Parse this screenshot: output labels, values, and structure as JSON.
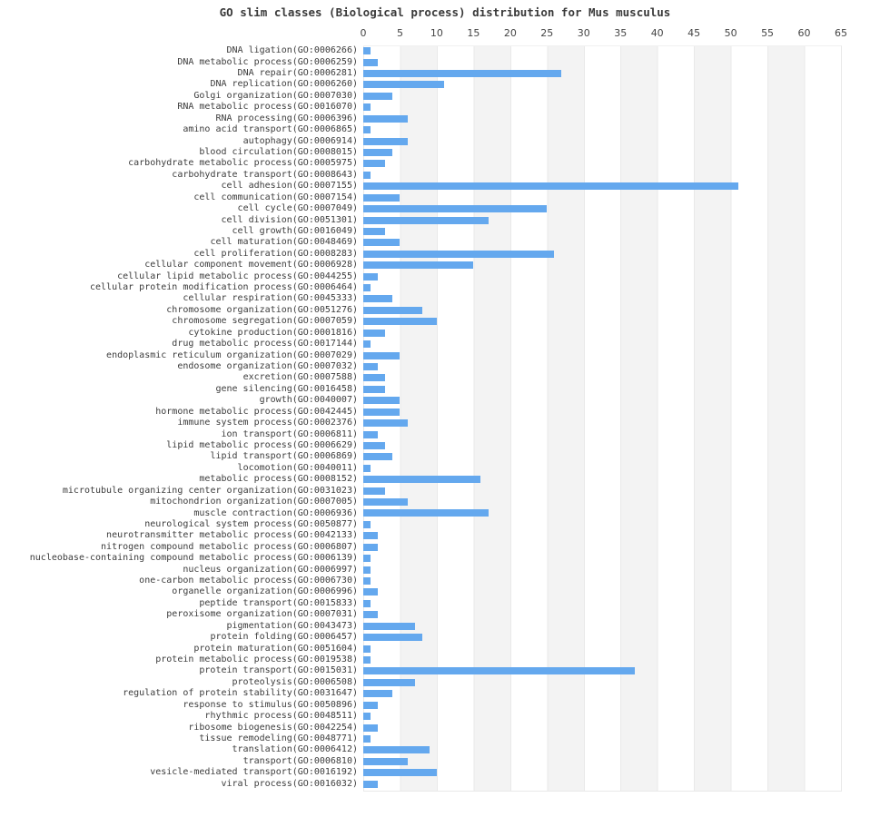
{
  "chart_data": {
    "type": "bar",
    "orientation": "horizontal",
    "title": "GO slim classes (Biological process) distribution for Mus musculus",
    "xlabel": "",
    "ylabel": "",
    "xlim": [
      0,
      65
    ],
    "x_ticks": [
      0,
      5,
      10,
      15,
      20,
      25,
      30,
      35,
      40,
      45,
      50,
      55,
      60,
      65
    ],
    "grid": true,
    "axis_position": "top",
    "bar_color": "#64a8ee",
    "band_color": "#f3f3f3",
    "gridline_color": "#e9e9e9",
    "categories": [
      "DNA ligation(GO:0006266)",
      "DNA metabolic process(GO:0006259)",
      "DNA repair(GO:0006281)",
      "DNA replication(GO:0006260)",
      "Golgi organization(GO:0007030)",
      "RNA metabolic process(GO:0016070)",
      "RNA processing(GO:0006396)",
      "amino acid transport(GO:0006865)",
      "autophagy(GO:0006914)",
      "blood circulation(GO:0008015)",
      "carbohydrate metabolic process(GO:0005975)",
      "carbohydrate transport(GO:0008643)",
      "cell adhesion(GO:0007155)",
      "cell communication(GO:0007154)",
      "cell cycle(GO:0007049)",
      "cell division(GO:0051301)",
      "cell growth(GO:0016049)",
      "cell maturation(GO:0048469)",
      "cell proliferation(GO:0008283)",
      "cellular component movement(GO:0006928)",
      "cellular lipid metabolic process(GO:0044255)",
      "cellular protein modification process(GO:0006464)",
      "cellular respiration(GO:0045333)",
      "chromosome organization(GO:0051276)",
      "chromosome segregation(GO:0007059)",
      "cytokine production(GO:0001816)",
      "drug metabolic process(GO:0017144)",
      "endoplasmic reticulum organization(GO:0007029)",
      "endosome organization(GO:0007032)",
      "excretion(GO:0007588)",
      "gene silencing(GO:0016458)",
      "growth(GO:0040007)",
      "hormone metabolic process(GO:0042445)",
      "immune system process(GO:0002376)",
      "ion transport(GO:0006811)",
      "lipid metabolic process(GO:0006629)",
      "lipid transport(GO:0006869)",
      "locomotion(GO:0040011)",
      "metabolic process(GO:0008152)",
      "microtubule organizing center organization(GO:0031023)",
      "mitochondrion organization(GO:0007005)",
      "muscle contraction(GO:0006936)",
      "neurological system process(GO:0050877)",
      "neurotransmitter metabolic process(GO:0042133)",
      "nitrogen compound metabolic process(GO:0006807)",
      "nucleobase-containing compound metabolic process(GO:0006139)",
      "nucleus organization(GO:0006997)",
      "one-carbon metabolic process(GO:0006730)",
      "organelle organization(GO:0006996)",
      "peptide transport(GO:0015833)",
      "peroxisome organization(GO:0007031)",
      "pigmentation(GO:0043473)",
      "protein folding(GO:0006457)",
      "protein maturation(GO:0051604)",
      "protein metabolic process(GO:0019538)",
      "protein transport(GO:0015031)",
      "proteolysis(GO:0006508)",
      "regulation of protein stability(GO:0031647)",
      "response to stimulus(GO:0050896)",
      "rhythmic process(GO:0048511)",
      "ribosome biogenesis(GO:0042254)",
      "tissue remodeling(GO:0048771)",
      "translation(GO:0006412)",
      "transport(GO:0006810)",
      "vesicle-mediated transport(GO:0016192)",
      "viral process(GO:0016032)"
    ],
    "values": [
      1,
      2,
      27,
      11,
      4,
      1,
      6,
      1,
      6,
      4,
      3,
      1,
      51,
      5,
      25,
      17,
      3,
      5,
      26,
      15,
      2,
      1,
      4,
      8,
      10,
      3,
      1,
      5,
      2,
      3,
      3,
      5,
      5,
      6,
      2,
      3,
      4,
      1,
      16,
      3,
      6,
      17,
      1,
      2,
      2,
      1,
      1,
      1,
      2,
      1,
      2,
      7,
      8,
      1,
      1,
      37,
      7,
      4,
      2,
      1,
      2,
      1,
      9,
      6,
      10,
      2
    ]
  }
}
